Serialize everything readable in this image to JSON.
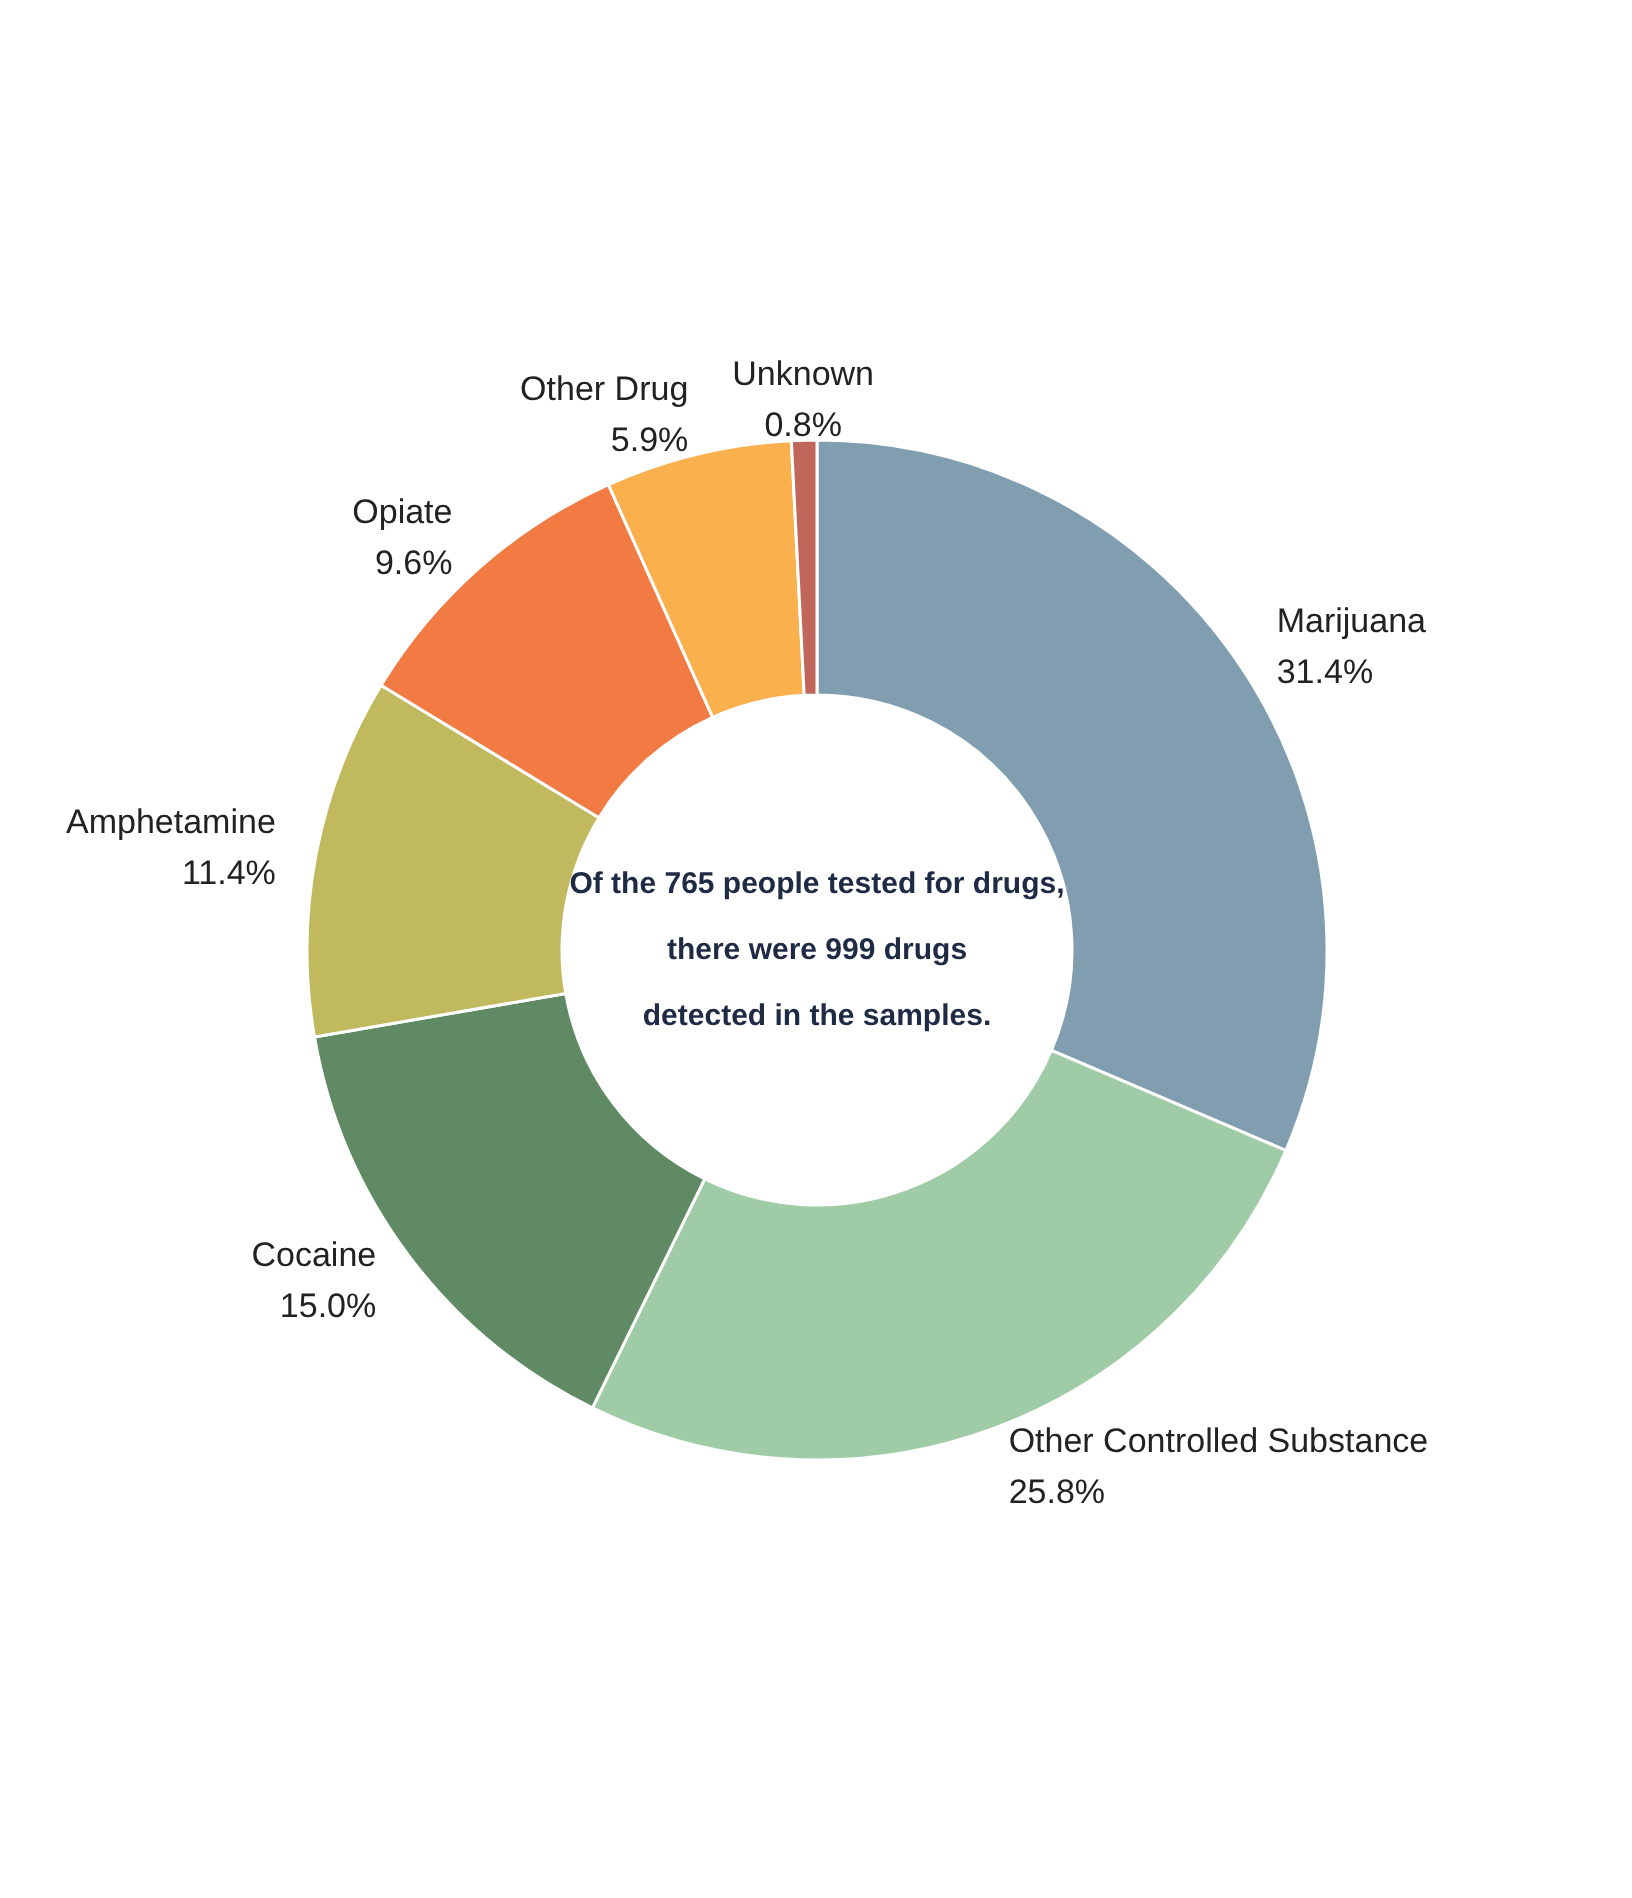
{
  "chart_data": {
    "type": "donut",
    "categories": [
      "Marijuana",
      "Other Controlled Substance",
      "Cocaine",
      "Amphetamine",
      "Opiate",
      "Other Drug",
      "Unknown"
    ],
    "values": [
      31.4,
      25.8,
      15.0,
      11.4,
      9.6,
      5.9,
      0.8
    ],
    "colors": [
      "#819db0",
      "#a0cba7",
      "#5f8a63",
      "#c0b95e",
      "#f27a43",
      "#fbb04e",
      "#c0665a"
    ],
    "value_labels": [
      "31.4%",
      "25.8%",
      "15.0%",
      "11.4%",
      "9.6%",
      "5.9%",
      "0.8%"
    ],
    "annotations": [
      "Of the 765 people tested for drugs,",
      "there were 999 drugs",
      "detected in the samples."
    ],
    "legend": false
  }
}
